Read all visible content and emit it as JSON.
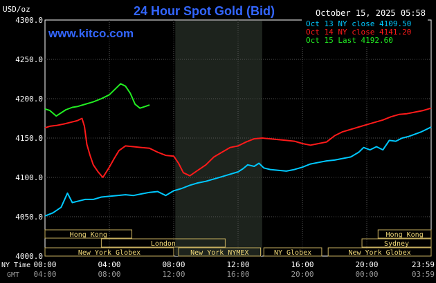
{
  "header": {
    "unit": "USD/oz",
    "title": "24 Hour Spot Gold (Bid)",
    "datetime": "October 15, 2025 05:58",
    "brand": "www.kitco.com"
  },
  "legend": [
    {
      "label": "Oct 13 NY close 4109.50",
      "color": "#00c8ff"
    },
    {
      "label": "Oct 14 NY close 4141.20",
      "color": "#ff1a1a"
    },
    {
      "label": "Oct 15 Last 4192.60",
      "color": "#22ee22"
    }
  ],
  "axis_labels": {
    "ny_time": "NY Time",
    "gmt": "GMT"
  },
  "chart_data": {
    "type": "line",
    "title": "24 Hour Spot Gold (Bid)",
    "ylabel": "USD/oz",
    "ylim": [
      4000,
      4300
    ],
    "xlim": [
      0,
      24
    ],
    "y_ticks": [
      "4000.0",
      "4050.0",
      "4100.0",
      "4150.0",
      "4200.0",
      "4250.0",
      "4300.0"
    ],
    "x_ticks_ny": [
      "00:00",
      "04:00",
      "08:00",
      "12:00",
      "16:00",
      "20:00",
      "23:59"
    ],
    "x_ticks_gmt": [
      "04:00",
      "08:00",
      "12:00",
      "16:00",
      "20:00",
      "00:00",
      "03:59"
    ],
    "grid": true,
    "legend_position": "top-right",
    "shaded_period": [
      8.1,
      13.5
    ],
    "sessions": [
      {
        "name": "Hong Kong",
        "start": 0,
        "end": 5.4,
        "row": 0
      },
      {
        "name": "Hong Kong",
        "start": 20.7,
        "end": 24,
        "row": 0
      },
      {
        "name": "London",
        "start": 3.5,
        "end": 11.2,
        "row": 1
      },
      {
        "name": "Sydney",
        "start": 19.7,
        "end": 24,
        "row": 1
      },
      {
        "name": "New York Globex",
        "start": 0,
        "end": 8.0,
        "row": 2
      },
      {
        "name": "New York NYMEX",
        "start": 8.3,
        "end": 13.4,
        "row": 2
      },
      {
        "name": "NY Globex",
        "start": 13.6,
        "end": 17.2,
        "row": 2
      },
      {
        "name": "New York Globex",
        "start": 17.6,
        "end": 24,
        "row": 2
      }
    ],
    "series": [
      {
        "name": "Oct 13 NY close 4109.50",
        "color": "#00c8ff",
        "x": [
          0,
          0.5,
          1.0,
          1.4,
          1.7,
          2.1,
          2.5,
          3.0,
          3.5,
          4.0,
          4.5,
          5.0,
          5.5,
          6.0,
          6.5,
          7.0,
          7.5,
          8.0,
          8.5,
          9.0,
          9.5,
          10.0,
          10.5,
          11.0,
          11.5,
          12.0,
          12.3,
          12.6,
          13.0,
          13.3,
          13.6,
          14.0,
          14.5,
          15.0,
          15.5,
          16.0,
          16.5,
          17.0,
          17.5,
          18.0,
          18.5,
          19.0,
          19.5,
          19.8,
          20.2,
          20.6,
          21.0,
          21.4,
          21.8,
          22.2,
          22.6,
          23.0,
          23.4,
          23.7,
          24.0
        ],
        "y": [
          4051,
          4055,
          4062,
          4080,
          4068,
          4070,
          4072,
          4072,
          4075,
          4076,
          4077,
          4078,
          4077,
          4079,
          4081,
          4082,
          4077,
          4083,
          4086,
          4090,
          4093,
          4095,
          4098,
          4101,
          4104,
          4107,
          4111,
          4116,
          4114,
          4118,
          4112,
          4110,
          4109,
          4108,
          4110,
          4113,
          4117,
          4119,
          4121,
          4122,
          4124,
          4126,
          4132,
          4138,
          4135,
          4139,
          4135,
          4147,
          4146,
          4150,
          4152,
          4155,
          4158,
          4161,
          4164
        ]
      },
      {
        "name": "Oct 14 NY close 4141.20",
        "color": "#ff1a1a",
        "x": [
          0,
          0.3,
          0.7,
          1.2,
          1.6,
          2.0,
          2.3,
          2.45,
          2.6,
          2.8,
          3.0,
          3.3,
          3.6,
          4.0,
          4.3,
          4.6,
          5.0,
          5.5,
          6.0,
          6.5,
          7.0,
          7.5,
          8.0,
          8.3,
          8.6,
          9.0,
          9.5,
          10.0,
          10.5,
          11.0,
          11.5,
          12.0,
          12.5,
          13.0,
          13.5,
          14.0,
          14.5,
          15.0,
          15.5,
          16.0,
          16.5,
          17.0,
          17.5,
          18.0,
          18.5,
          19.0,
          19.5,
          20.0,
          20.5,
          21.0,
          21.5,
          22.0,
          22.5,
          23.0,
          23.5,
          24.0
        ],
        "y": [
          4163,
          4165,
          4166,
          4168,
          4170,
          4172,
          4175,
          4165,
          4142,
          4128,
          4116,
          4107,
          4100,
          4113,
          4124,
          4134,
          4140,
          4139,
          4138,
          4137,
          4132,
          4128,
          4127,
          4118,
          4106,
          4102,
          4109,
          4116,
          4126,
          4132,
          4138,
          4140,
          4145,
          4149,
          4150,
          4149,
          4148,
          4147,
          4146,
          4143,
          4141,
          4143,
          4145,
          4153,
          4158,
          4161,
          4164,
          4167,
          4170,
          4173,
          4177,
          4180,
          4181,
          4183,
          4185,
          4188
        ]
      },
      {
        "name": "Oct 15 Last 4192.60",
        "color": "#22ee22",
        "x": [
          0,
          0.3,
          0.7,
          1.0,
          1.3,
          1.7,
          2.0,
          2.5,
          3.0,
          3.5,
          4.0,
          4.4,
          4.7,
          5.0,
          5.3,
          5.6,
          5.9,
          6.2,
          6.5
        ],
        "y": [
          4187,
          4185,
          4178,
          4182,
          4186,
          4189,
          4190,
          4193,
          4196,
          4200,
          4205,
          4213,
          4219,
          4216,
          4207,
          4193,
          4188,
          4190,
          4192
        ]
      }
    ]
  }
}
